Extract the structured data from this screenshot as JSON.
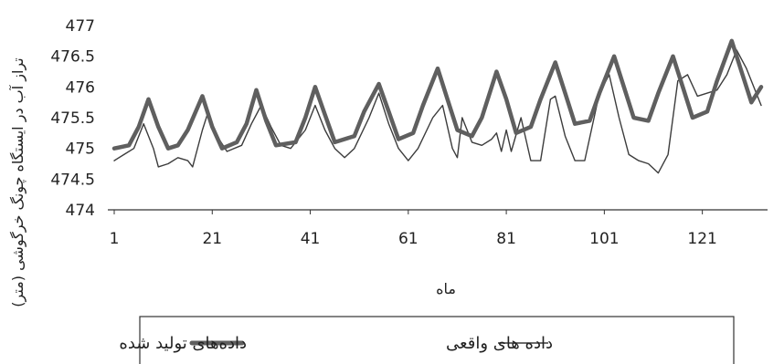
{
  "chart_data": {
    "type": "line",
    "title": "",
    "xlabel": "ماه",
    "ylabel": "تراز آب در ایستگاه چونگ خرگوشی (متر)",
    "xlim": [
      1,
      133
    ],
    "ylim": [
      474,
      477
    ],
    "xticks": [
      "1",
      "21",
      "41",
      "61",
      "81",
      "101",
      "121"
    ],
    "yticks": [
      "474",
      "474.5",
      "475",
      "475.5",
      "476",
      "476.5",
      "477"
    ],
    "grid": false,
    "legend_position": "bottom",
    "series": [
      {
        "name": "داده‌های تولید شده",
        "color": "#5f5f5f",
        "style": "thick",
        "points": [
          [
            1,
            475.0
          ],
          [
            4,
            475.05
          ],
          [
            6,
            475.35
          ],
          [
            8,
            475.8
          ],
          [
            10,
            475.35
          ],
          [
            12,
            475.0
          ],
          [
            14,
            475.05
          ],
          [
            16,
            475.3
          ],
          [
            19,
            475.85
          ],
          [
            21,
            475.35
          ],
          [
            23,
            475.0
          ],
          [
            26,
            475.1
          ],
          [
            28,
            475.4
          ],
          [
            30,
            475.95
          ],
          [
            32,
            475.45
          ],
          [
            34,
            475.05
          ],
          [
            38,
            475.1
          ],
          [
            40,
            475.5
          ],
          [
            42,
            476.0
          ],
          [
            44,
            475.55
          ],
          [
            46,
            475.1
          ],
          [
            50,
            475.2
          ],
          [
            52,
            475.6
          ],
          [
            55,
            476.05
          ],
          [
            57,
            475.6
          ],
          [
            59,
            475.15
          ],
          [
            62,
            475.25
          ],
          [
            64,
            475.7
          ],
          [
            67,
            476.3
          ],
          [
            69,
            475.8
          ],
          [
            71,
            475.3
          ],
          [
            74,
            475.2
          ],
          [
            76,
            475.5
          ],
          [
            79,
            476.25
          ],
          [
            81,
            475.8
          ],
          [
            83,
            475.25
          ],
          [
            86,
            475.35
          ],
          [
            88,
            475.8
          ],
          [
            91,
            476.4
          ],
          [
            93,
            475.9
          ],
          [
            95,
            475.4
          ],
          [
            98,
            475.45
          ],
          [
            100,
            475.9
          ],
          [
            103,
            476.5
          ],
          [
            105,
            476.0
          ],
          [
            107,
            475.5
          ],
          [
            110,
            475.45
          ],
          [
            112,
            475.9
          ],
          [
            115,
            476.5
          ],
          [
            117,
            476.0
          ],
          [
            119,
            475.5
          ],
          [
            122,
            475.6
          ],
          [
            124,
            476.1
          ],
          [
            127,
            476.75
          ],
          [
            129,
            476.25
          ],
          [
            131,
            475.75
          ],
          [
            133,
            476.0
          ]
        ]
      },
      {
        "name": "داده های واقعی",
        "color": "#3c3c3c",
        "style": "thin",
        "points": [
          [
            1,
            474.8
          ],
          [
            3,
            474.9
          ],
          [
            5,
            475.0
          ],
          [
            7,
            475.4
          ],
          [
            9,
            475.0
          ],
          [
            10,
            474.7
          ],
          [
            12,
            474.75
          ],
          [
            14,
            474.85
          ],
          [
            16,
            474.8
          ],
          [
            17,
            474.7
          ],
          [
            19,
            475.3
          ],
          [
            20,
            475.55
          ],
          [
            22,
            475.2
          ],
          [
            24,
            474.95
          ],
          [
            27,
            475.05
          ],
          [
            29,
            475.4
          ],
          [
            31,
            475.7
          ],
          [
            33,
            475.35
          ],
          [
            35,
            475.05
          ],
          [
            37,
            475.0
          ],
          [
            40,
            475.3
          ],
          [
            42,
            475.7
          ],
          [
            44,
            475.3
          ],
          [
            46,
            475.0
          ],
          [
            48,
            474.85
          ],
          [
            50,
            475.0
          ],
          [
            53,
            475.5
          ],
          [
            55,
            475.9
          ],
          [
            57,
            475.4
          ],
          [
            59,
            475.0
          ],
          [
            61,
            474.8
          ],
          [
            63,
            475.0
          ],
          [
            66,
            475.5
          ],
          [
            68,
            475.7
          ],
          [
            70,
            475.0
          ],
          [
            71,
            474.85
          ],
          [
            72,
            475.5
          ],
          [
            74,
            475.1
          ],
          [
            76,
            475.05
          ],
          [
            78,
            475.15
          ],
          [
            79,
            475.25
          ],
          [
            80,
            474.95
          ],
          [
            81,
            475.3
          ],
          [
            82,
            474.95
          ],
          [
            84,
            475.5
          ],
          [
            86,
            474.8
          ],
          [
            88,
            474.8
          ],
          [
            90,
            475.8
          ],
          [
            91,
            475.85
          ],
          [
            93,
            475.2
          ],
          [
            95,
            474.8
          ],
          [
            97,
            474.8
          ],
          [
            100,
            475.9
          ],
          [
            102,
            476.2
          ],
          [
            104,
            475.5
          ],
          [
            106,
            474.9
          ],
          [
            108,
            474.8
          ],
          [
            110,
            474.75
          ],
          [
            112,
            474.6
          ],
          [
            114,
            474.9
          ],
          [
            116,
            476.1
          ],
          [
            118,
            476.2
          ],
          [
            120,
            475.85
          ],
          [
            122,
            475.9
          ],
          [
            124,
            475.95
          ],
          [
            126,
            476.2
          ],
          [
            128,
            476.6
          ],
          [
            130,
            476.3
          ],
          [
            133,
            475.7
          ]
        ]
      }
    ]
  },
  "legend": {
    "generated_label": "داده‌های تولید شده",
    "actual_label": "داده های واقعی"
  }
}
